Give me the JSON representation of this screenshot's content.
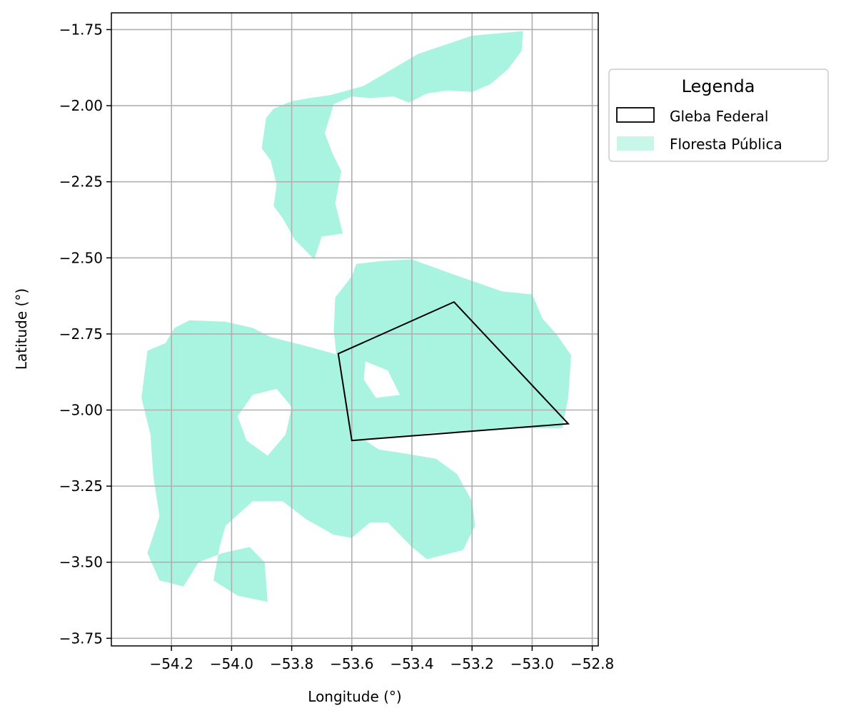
{
  "chart_data": {
    "type": "map",
    "xlabel": "Longitude (°)",
    "ylabel": "Latitude (°)",
    "xlim": [
      -54.4,
      -52.78
    ],
    "ylim": [
      -3.775,
      -1.695
    ],
    "x_ticks": [
      -54.2,
      -54.0,
      -53.8,
      -53.6,
      -53.4,
      -53.2,
      -53.0,
      -52.8
    ],
    "x_tick_labels": [
      "−54.2",
      "−54.0",
      "−53.8",
      "−53.6",
      "−53.4",
      "−53.2",
      "−53.0",
      "−52.8"
    ],
    "y_ticks": [
      -1.75,
      -2.0,
      -2.25,
      -2.5,
      -2.75,
      -3.0,
      -3.25,
      -3.5,
      -3.75
    ],
    "y_tick_labels": [
      "−1.75",
      "−2.00",
      "−2.25",
      "−2.50",
      "−2.75",
      "−3.00",
      "−3.25",
      "−3.50",
      "−3.75"
    ],
    "grid": true,
    "legend": {
      "title": "Legenda",
      "placement": "outside-right-top",
      "entries": [
        {
          "label": "Gleba Federal",
          "style": "outline",
          "color": "#000000"
        },
        {
          "label": "Floresta Pública",
          "style": "fill",
          "color": "#a8f4e0"
        }
      ]
    },
    "layers": {
      "gleba_federal": {
        "color": "#000000",
        "polygon": [
          [
            -53.645,
            -2.815
          ],
          [
            -53.26,
            -2.645
          ],
          [
            -52.88,
            -3.045
          ],
          [
            -53.6,
            -3.1
          ],
          [
            -53.645,
            -2.815
          ]
        ]
      },
      "floresta_publica": {
        "color": "#a8f4e0",
        "polygons": [
          [
            [
              -53.885,
              -2.04
            ],
            [
              -53.86,
              -2.01
            ],
            [
              -53.8,
              -1.985
            ],
            [
              -53.74,
              -1.975
            ],
            [
              -53.67,
              -1.965
            ],
            [
              -53.56,
              -1.935
            ],
            [
              -53.5,
              -1.9
            ],
            [
              -53.38,
              -1.83
            ],
            [
              -53.2,
              -1.77
            ],
            [
              -53.03,
              -1.755
            ],
            [
              -53.035,
              -1.82
            ],
            [
              -53.08,
              -1.88
            ],
            [
              -53.14,
              -1.93
            ],
            [
              -53.2,
              -1.955
            ],
            [
              -53.28,
              -1.95
            ],
            [
              -53.35,
              -1.96
            ],
            [
              -53.41,
              -1.99
            ],
            [
              -53.46,
              -1.97
            ],
            [
              -53.54,
              -1.975
            ],
            [
              -53.6,
              -1.97
            ],
            [
              -53.66,
              -1.995
            ],
            [
              -53.69,
              -2.09
            ],
            [
              -53.665,
              -2.155
            ],
            [
              -53.635,
              -2.215
            ],
            [
              -53.655,
              -2.32
            ],
            [
              -53.63,
              -2.42
            ],
            [
              -53.7,
              -2.43
            ],
            [
              -53.725,
              -2.505
            ],
            [
              -53.79,
              -2.44
            ],
            [
              -53.83,
              -2.37
            ],
            [
              -53.86,
              -2.33
            ],
            [
              -53.85,
              -2.26
            ],
            [
              -53.87,
              -2.18
            ],
            [
              -53.9,
              -2.14
            ],
            [
              -53.885,
              -2.04
            ]
          ],
          [
            [
              -53.585,
              -2.52
            ],
            [
              -53.5,
              -2.51
            ],
            [
              -53.4,
              -2.505
            ],
            [
              -53.26,
              -2.555
            ],
            [
              -53.1,
              -2.61
            ],
            [
              -53.0,
              -2.62
            ],
            [
              -52.965,
              -2.7
            ],
            [
              -52.92,
              -2.75
            ],
            [
              -52.87,
              -2.82
            ],
            [
              -52.88,
              -2.96
            ],
            [
              -52.9,
              -3.06
            ],
            [
              -53.05,
              -3.06
            ],
            [
              -53.2,
              -3.07
            ],
            [
              -53.33,
              -3.075
            ],
            [
              -53.455,
              -3.09
            ],
            [
              -53.58,
              -3.1
            ],
            [
              -53.62,
              -3.06
            ],
            [
              -53.63,
              -2.95
            ],
            [
              -53.65,
              -2.83
            ],
            [
              -53.66,
              -2.74
            ],
            [
              -53.655,
              -2.63
            ],
            [
              -53.6,
              -2.56
            ],
            [
              -53.585,
              -2.52
            ]
          ],
          [
            [
              -54.28,
              -2.805
            ],
            [
              -54.22,
              -2.78
            ],
            [
              -54.19,
              -2.73
            ],
            [
              -54.14,
              -2.705
            ],
            [
              -54.02,
              -2.71
            ],
            [
              -53.93,
              -2.73
            ],
            [
              -53.87,
              -2.76
            ],
            [
              -53.75,
              -2.79
            ],
            [
              -53.64,
              -2.82
            ],
            [
              -53.6,
              -2.9
            ],
            [
              -53.59,
              -3.01
            ],
            [
              -53.57,
              -3.09
            ],
            [
              -53.51,
              -3.13
            ],
            [
              -53.44,
              -3.14
            ],
            [
              -53.32,
              -3.16
            ],
            [
              -53.25,
              -3.21
            ],
            [
              -53.2,
              -3.3
            ],
            [
              -53.19,
              -3.38
            ],
            [
              -53.23,
              -3.46
            ],
            [
              -53.35,
              -3.49
            ],
            [
              -53.4,
              -3.45
            ],
            [
              -53.48,
              -3.37
            ],
            [
              -53.54,
              -3.37
            ],
            [
              -53.6,
              -3.42
            ],
            [
              -53.66,
              -3.41
            ],
            [
              -53.75,
              -3.36
            ],
            [
              -53.83,
              -3.3
            ],
            [
              -53.93,
              -3.3
            ],
            [
              -54.02,
              -3.38
            ],
            [
              -54.04,
              -3.45
            ],
            [
              -54.06,
              -3.56
            ],
            [
              -53.98,
              -3.61
            ],
            [
              -53.88,
              -3.63
            ],
            [
              -53.89,
              -3.5
            ],
            [
              -53.94,
              -3.45
            ],
            [
              -54.03,
              -3.47
            ],
            [
              -54.11,
              -3.5
            ],
            [
              -54.16,
              -3.58
            ],
            [
              -54.24,
              -3.56
            ],
            [
              -54.28,
              -3.47
            ],
            [
              -54.24,
              -3.35
            ],
            [
              -54.26,
              -3.22
            ],
            [
              -54.27,
              -3.08
            ],
            [
              -54.3,
              -2.96
            ],
            [
              -54.28,
              -2.805
            ]
          ]
        ],
        "holes": [
          [
            [
              -53.93,
              -2.95
            ],
            [
              -53.85,
              -2.93
            ],
            [
              -53.8,
              -2.99
            ],
            [
              -53.82,
              -3.08
            ],
            [
              -53.88,
              -3.15
            ],
            [
              -53.95,
              -3.1
            ],
            [
              -53.98,
              -3.02
            ],
            [
              -53.93,
              -2.95
            ]
          ],
          [
            [
              -53.555,
              -2.84
            ],
            [
              -53.48,
              -2.87
            ],
            [
              -53.44,
              -2.95
            ],
            [
              -53.52,
              -2.96
            ],
            [
              -53.56,
              -2.9
            ],
            [
              -53.555,
              -2.84
            ]
          ]
        ]
      }
    }
  }
}
